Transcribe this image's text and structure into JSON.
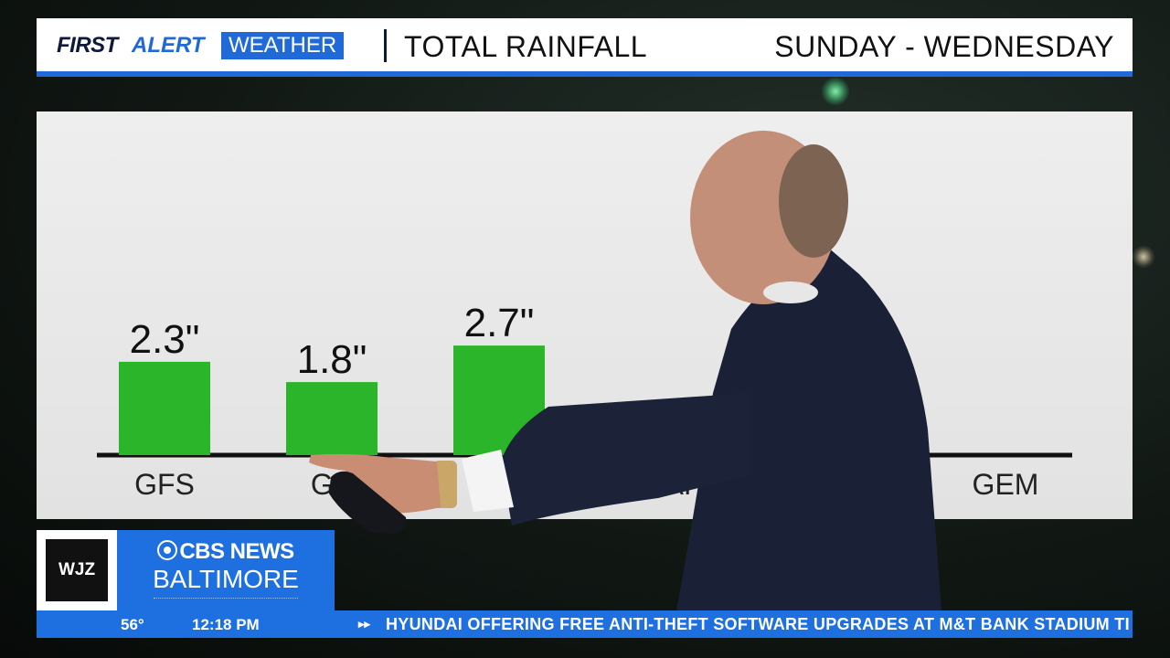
{
  "header": {
    "brand_first": "FIRST",
    "brand_alert": "ALERT",
    "brand_weather": "WEATHER",
    "title": "TOTAL RAINFALL",
    "dates": "SUNDAY - WEDNESDAY"
  },
  "chart_data": {
    "type": "bar",
    "categories": [
      "GFS",
      "GE",
      "",
      "NAI",
      "GEM"
    ],
    "values": [
      2.3,
      1.8,
      2.7,
      null,
      null
    ],
    "value_labels": [
      "2.3\"",
      "1.8\"",
      "2.7\"",
      "",
      ""
    ],
    "title": "TOTAL RAINFALL",
    "bar_color": "#2bb52b",
    "grid": false
  },
  "lower_third": {
    "station": "WJZ",
    "network": "CBS NEWS",
    "city": "BALTIMORE"
  },
  "ticker": {
    "temperature": "56°",
    "time": "12:18 PM",
    "arrow": "▸▸",
    "headline": "HYUNDAI OFFERING FREE ANTI-THEFT SOFTWARE UPGRADES AT M&T BANK STADIUM TI"
  },
  "colors": {
    "accent": "#1f6ad8",
    "ticker": "#1e6fe0",
    "bars": "#2bb52b"
  }
}
